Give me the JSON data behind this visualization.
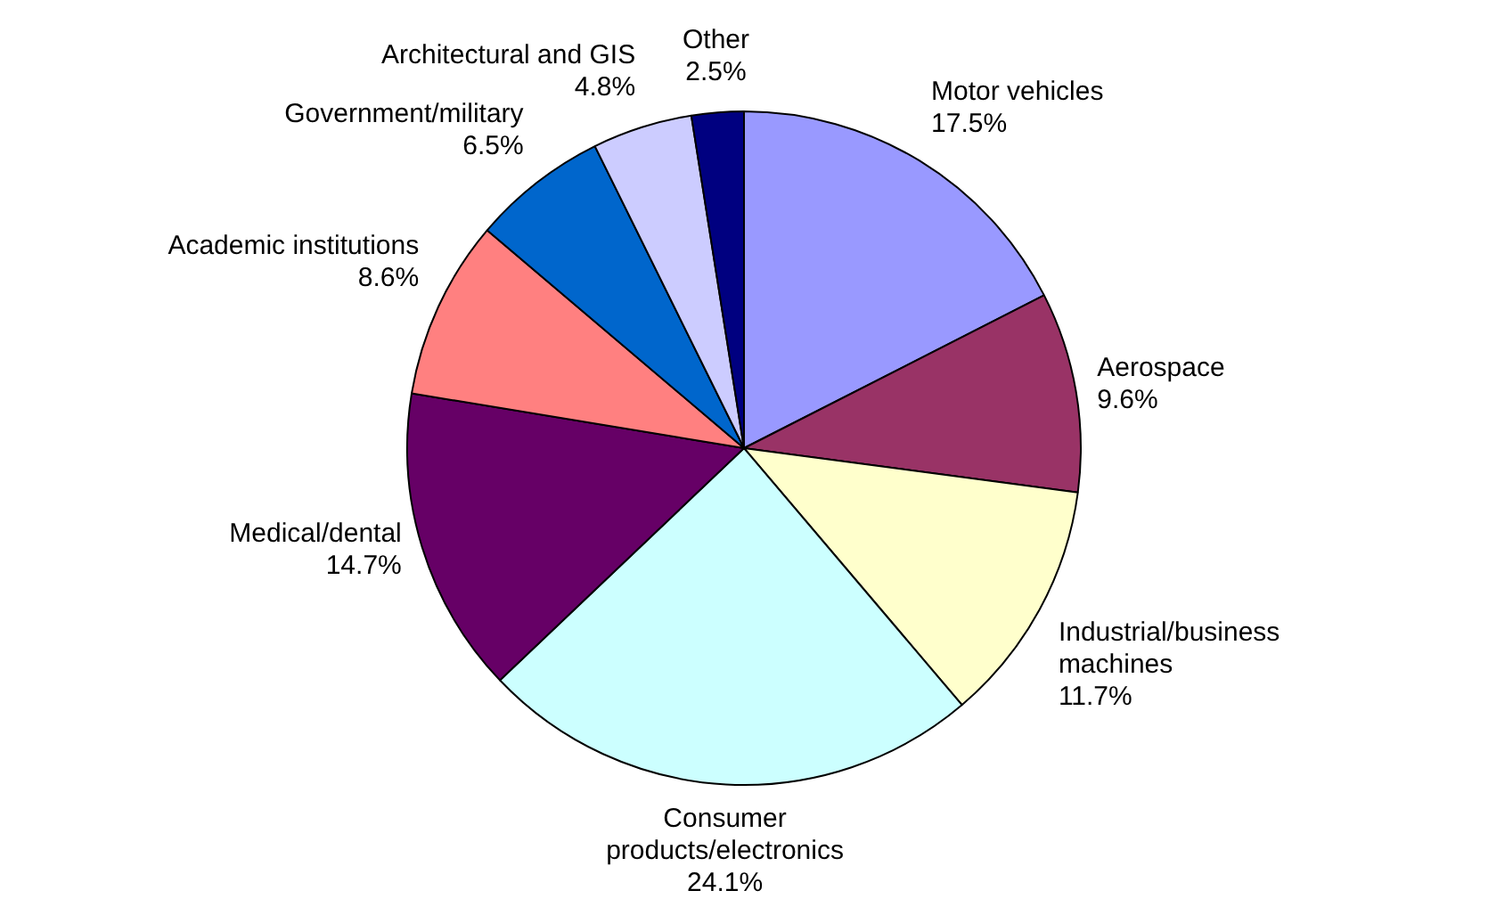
{
  "chart_data": {
    "type": "pie",
    "categories": [
      "Motor vehicles",
      "Aerospace",
      "Industrial/business machines",
      "Consumer products/electronics",
      "Medical/dental",
      "Academic institutions",
      "Government/military",
      "Architectural and GIS",
      "Other"
    ],
    "values": [
      17.5,
      9.6,
      11.7,
      24.1,
      14.7,
      8.6,
      6.5,
      4.8,
      2.5
    ],
    "value_labels": [
      "17.5%",
      "9.6%",
      "11.7%",
      "24.1%",
      "14.7%",
      "8.6%",
      "6.5%",
      "4.8%",
      "2.5%"
    ],
    "colors": [
      "#9999ff",
      "#993366",
      "#ffffcc",
      "#ccffff",
      "#660066",
      "#ff8080",
      "#0066cc",
      "#ccccff",
      "#000080"
    ],
    "legend": false
  }
}
